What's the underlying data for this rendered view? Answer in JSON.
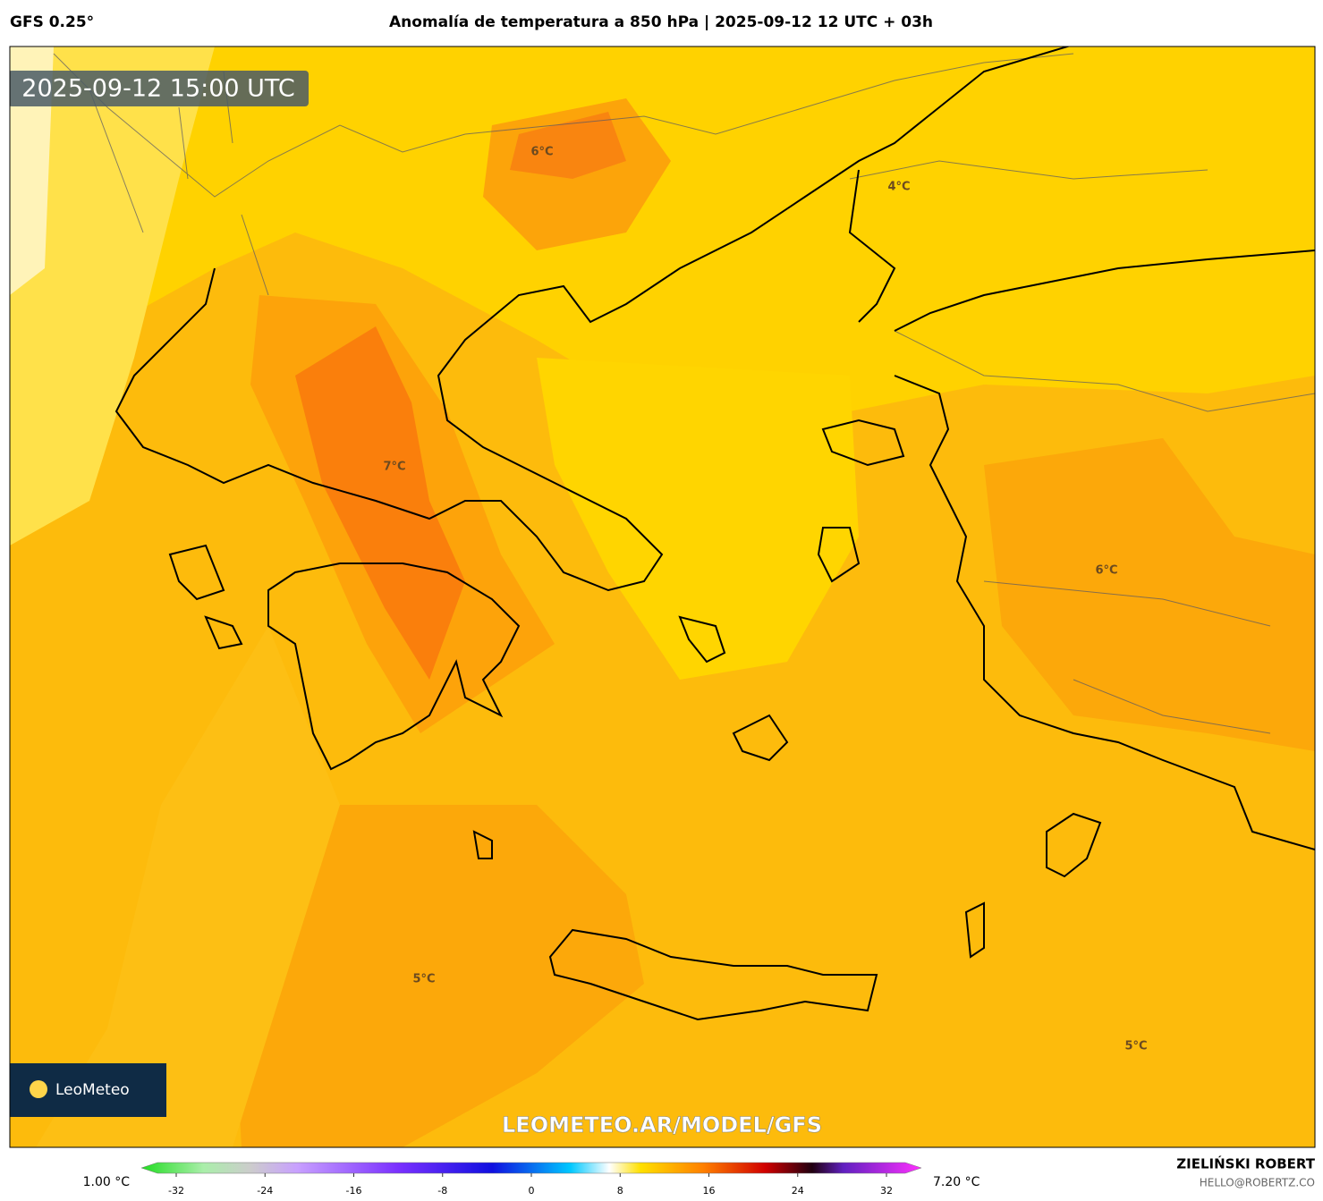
{
  "header": {
    "model": "GFS 0.25°",
    "title": "Anomalía de temperatura a 850 hPa | 2025-09-12 12 UTC + 03h",
    "author": "ZIELIŃSKI ROBERT",
    "email": "HELLO@ROBERTZ.CO"
  },
  "map": {
    "timestamp": "2025-09-12 15:00 UTC",
    "labels": [
      "6°C",
      "4°C",
      "7°C",
      "6°C",
      "5°C",
      "5°C"
    ],
    "watermark": "LEOMETEO.AR/MODEL/GFS",
    "logo": "LeoMeteo"
  },
  "colorbar": {
    "min_label": "1.00 °C",
    "max_label": "7.20 °C",
    "ticks": [
      -32,
      -24,
      -16,
      -8,
      0,
      8,
      16,
      24,
      32
    ]
  }
}
